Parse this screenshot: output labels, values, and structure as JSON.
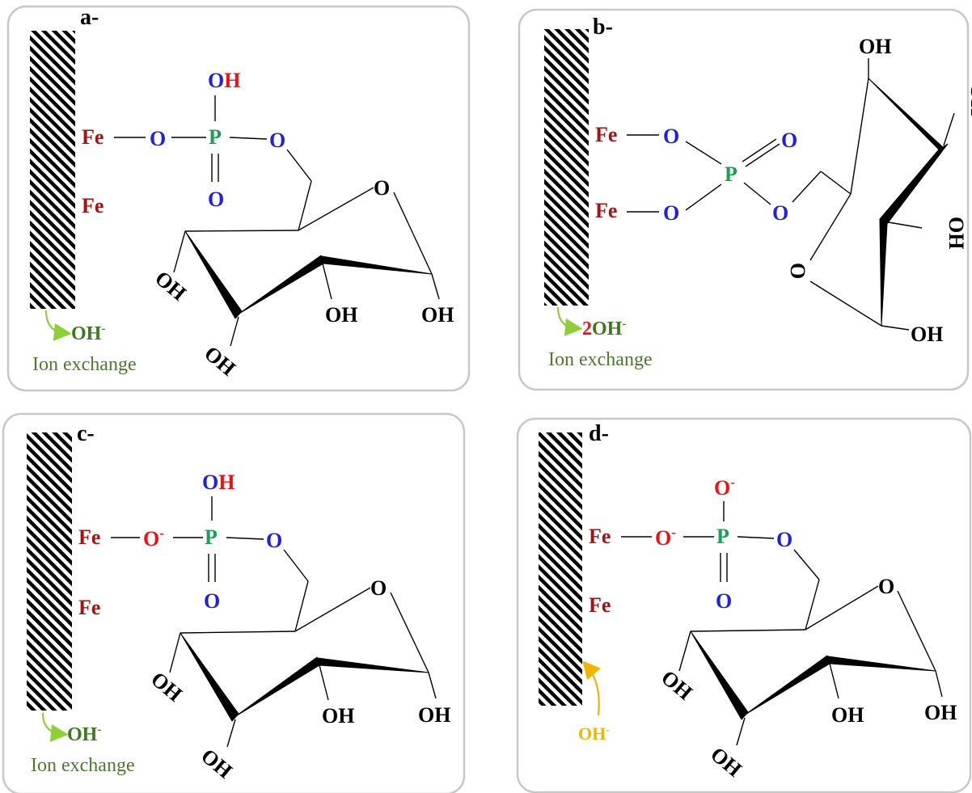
{
  "panels": [
    {
      "label": "a-",
      "fe_top": "Fe",
      "fe_bottom": "Fe",
      "o_bridge": "O",
      "o_bridge_charge": "",
      "p": "P",
      "o_top": "O",
      "o_top_charge": "",
      "h_top": "H",
      "o_double": "O",
      "o_ester": "O",
      "ring_o": "O",
      "oh_labels": [
        "OH",
        "OH",
        "OH",
        "OH"
      ],
      "released": "OH",
      "released_charge": "-",
      "caption": "Ion exchange"
    },
    {
      "label": "b-",
      "fe_top": "Fe",
      "fe_bottom": "Fe",
      "o_bridge_1": "O",
      "o_bridge_2": "O",
      "p": "P",
      "o_double": "O",
      "o_ester": "O",
      "ring_o": "O",
      "oh_labels": [
        "OH",
        "OH",
        "OH",
        "OH"
      ],
      "released_coef": "2",
      "released": "OH",
      "released_charge": "-",
      "caption": "Ion exchange"
    },
    {
      "label": "c-",
      "fe_top": "Fe",
      "fe_bottom": "Fe",
      "o_bridge": "O",
      "o_bridge_charge": "-",
      "p": "P",
      "o_top": "O",
      "h_top": "H",
      "o_double": "O",
      "o_ester": "O",
      "ring_o": "O",
      "oh_labels": [
        "OH",
        "OH",
        "OH",
        "OH"
      ],
      "released": "OH",
      "released_charge": "-",
      "caption": "Ion exchange"
    },
    {
      "label": "d-",
      "fe_top": "Fe",
      "fe_bottom": "Fe",
      "o_bridge": "O",
      "o_bridge_charge": "-",
      "p": "P",
      "o_top": "O",
      "o_top_charge": "-",
      "o_double": "O",
      "o_ester": "O",
      "ring_o": "O",
      "oh_labels": [
        "OH",
        "OH",
        "OH",
        "OH"
      ],
      "incoming": "OH",
      "incoming_charge": "-"
    }
  ],
  "colors": {
    "fe": "#a31515",
    "oxygen": "#2020e0",
    "phosphorus": "#1aa055",
    "charged": "#ee1111",
    "released_ion": "#3a7a1a",
    "incoming_ion": "#f0b400",
    "arrow_green": "#8fcf3a"
  }
}
